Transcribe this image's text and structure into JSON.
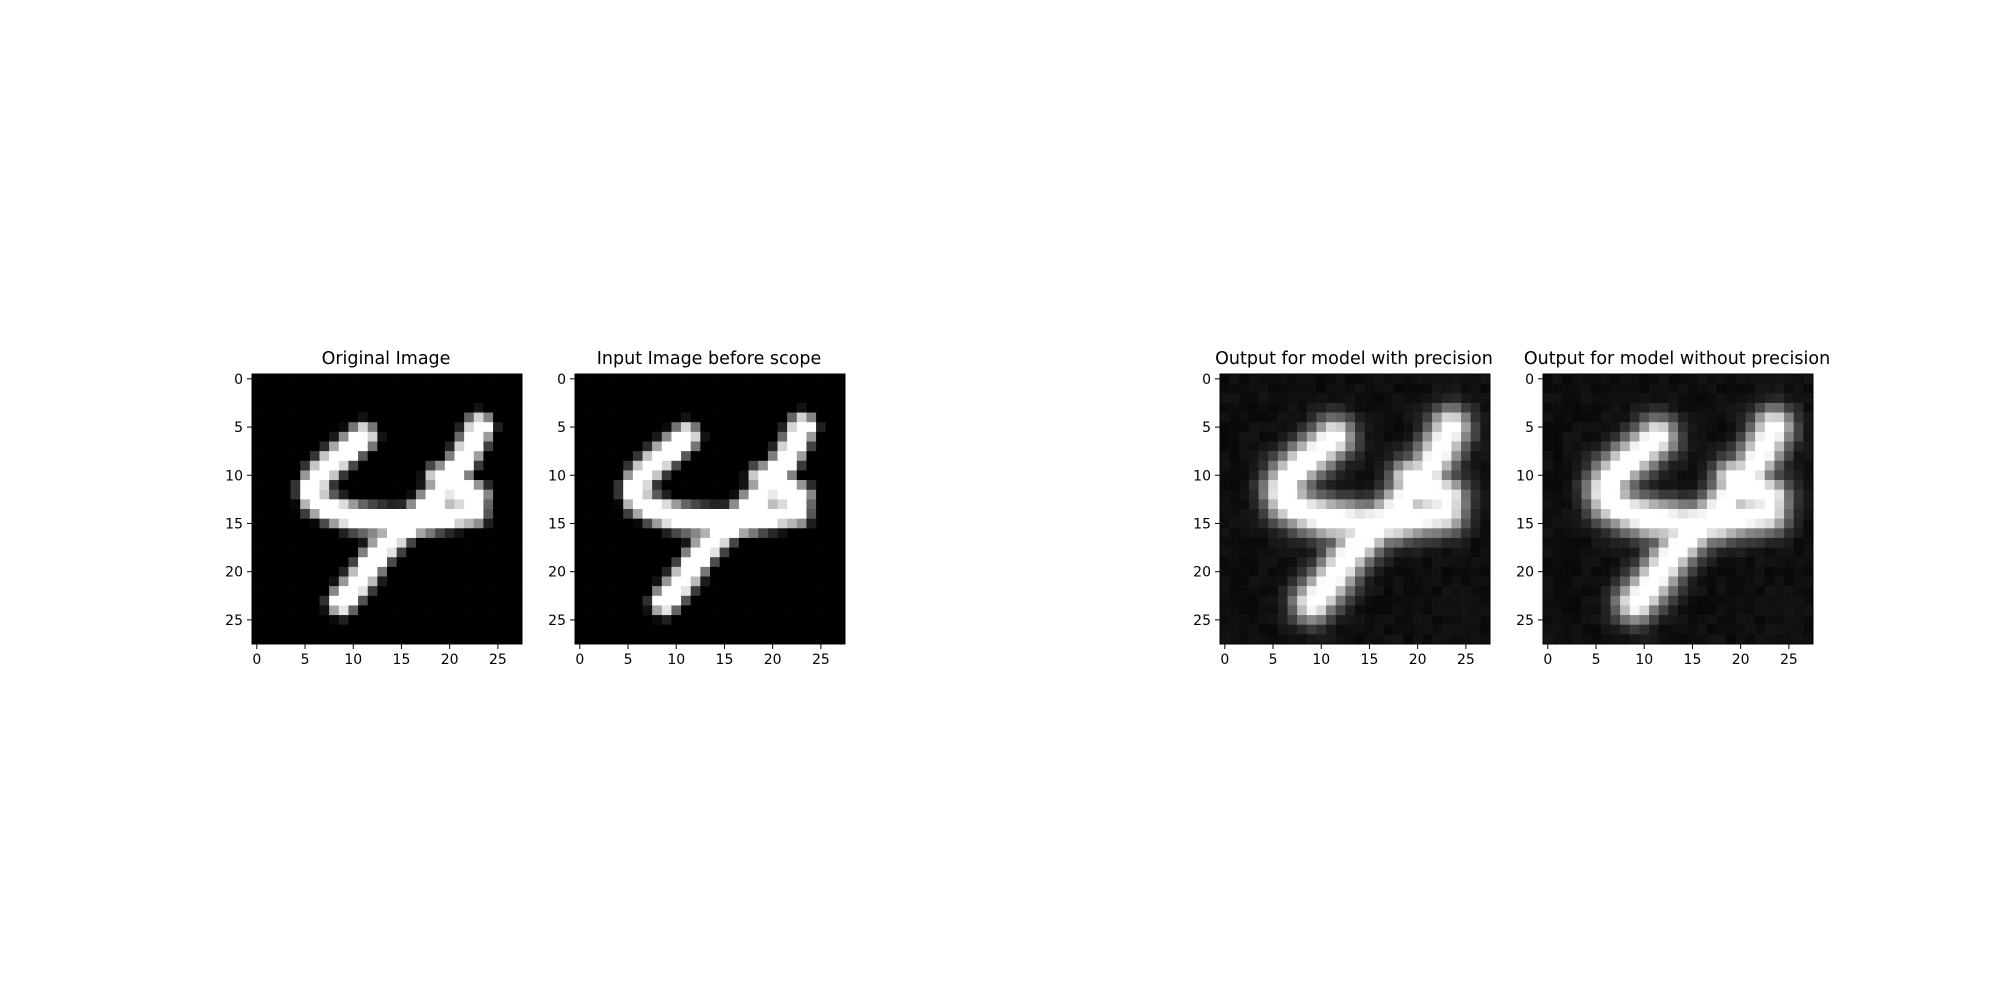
{
  "chart_data": [
    {
      "type": "heatmap",
      "title": "Original Image",
      "variant": "original",
      "colormap": "gray",
      "xlim": [
        0,
        27
      ],
      "ylim": [
        27,
        0
      ],
      "xticks": [
        0,
        5,
        10,
        15,
        20,
        25
      ],
      "yticks": [
        0,
        5,
        10,
        15,
        20,
        25
      ],
      "grid": false
    },
    {
      "type": "heatmap",
      "title": "Input Image before scope",
      "variant": "original",
      "colormap": "gray",
      "xlim": [
        0,
        27
      ],
      "ylim": [
        27,
        0
      ],
      "xticks": [
        0,
        5,
        10,
        15,
        20,
        25
      ],
      "yticks": [
        0,
        5,
        10,
        15,
        20,
        25
      ],
      "grid": false
    },
    {
      "type": "heatmap",
      "title": "Output for model with precision",
      "variant": "reconstruction",
      "colormap": "gray",
      "xlim": [
        0,
        27
      ],
      "ylim": [
        27,
        0
      ],
      "xticks": [
        0,
        5,
        10,
        15,
        20,
        25
      ],
      "yticks": [
        0,
        5,
        10,
        15,
        20,
        25
      ],
      "grid": false
    },
    {
      "type": "heatmap",
      "title": "Output for model without precision",
      "variant": "reconstruction",
      "colormap": "gray",
      "xlim": [
        0,
        27
      ],
      "ylim": [
        27,
        0
      ],
      "xticks": [
        0,
        5,
        10,
        15,
        20,
        25
      ],
      "yticks": [
        0,
        5,
        10,
        15,
        20,
        25
      ],
      "grid": false
    }
  ]
}
